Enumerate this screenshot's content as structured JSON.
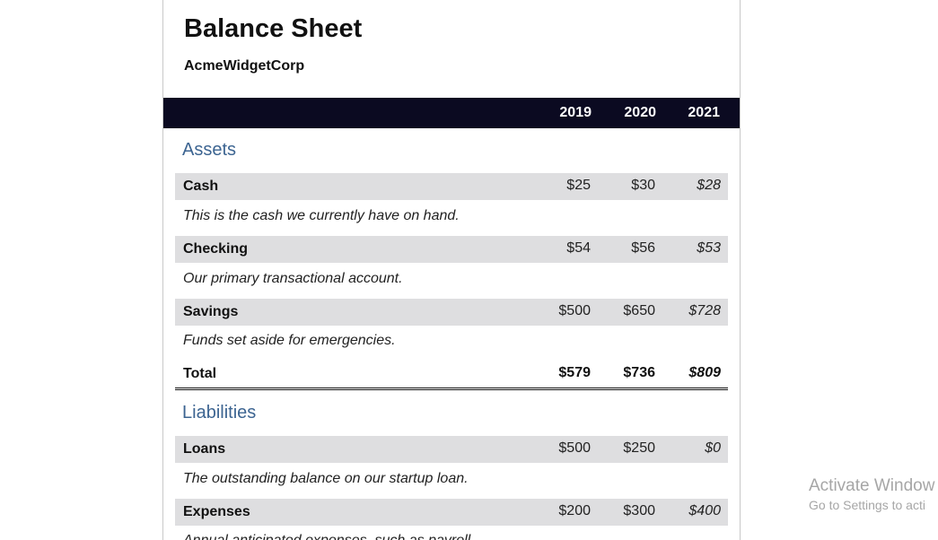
{
  "report": {
    "title": "Balance Sheet",
    "company": "AcmeWidgetCorp",
    "years": [
      "2019",
      "2020",
      "2021"
    ]
  },
  "assets": {
    "title": "Assets",
    "items": [
      {
        "label": "Cash",
        "values": [
          "$25",
          "$30",
          "$28"
        ],
        "description": "This is the cash we currently have on hand."
      },
      {
        "label": "Checking",
        "values": [
          "$54",
          "$56",
          "$53"
        ],
        "description": "Our primary transactional account."
      },
      {
        "label": "Savings",
        "values": [
          "$500",
          "$650",
          "$728"
        ],
        "description": "Funds set aside for emergencies."
      }
    ],
    "total": {
      "label": "Total",
      "values": [
        "$579",
        "$736",
        "$809"
      ]
    }
  },
  "liabilities": {
    "title": "Liabilities",
    "items": [
      {
        "label": "Loans",
        "values": [
          "$500",
          "$250",
          "$0"
        ],
        "description": "The outstanding balance on our startup loan."
      },
      {
        "label": "Expenses",
        "values": [
          "$200",
          "$300",
          "$400"
        ],
        "description": "Annual anticipated expenses, such as payroll."
      }
    ]
  },
  "watermark": {
    "line1": "Activate Window",
    "line2": "Go to Settings to acti"
  }
}
